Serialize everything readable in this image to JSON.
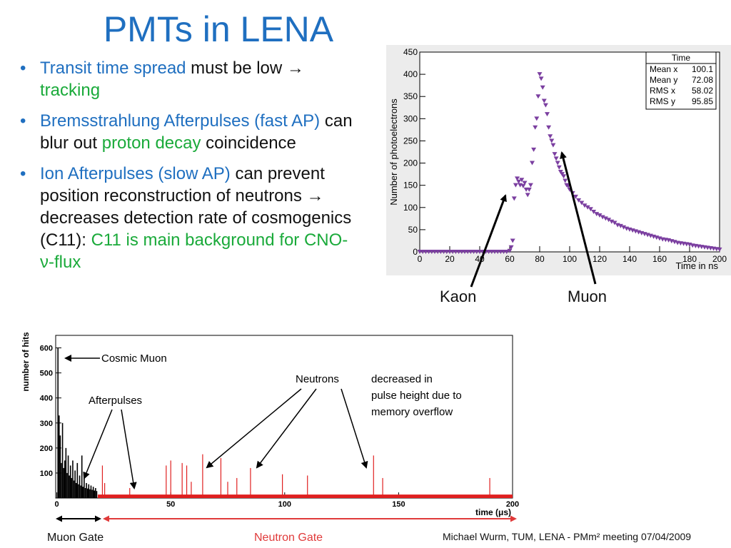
{
  "title": "PMTs in LENA",
  "bullets": [
    {
      "parts": [
        {
          "text": "Transit time spread",
          "color": "blue"
        },
        {
          "text": " must be low → ",
          "color": "black"
        },
        {
          "text": "tracking",
          "color": "green"
        }
      ]
    },
    {
      "parts": [
        {
          "text": "Bremsstrahlung Afterpulses (fast AP)",
          "color": "blue"
        },
        {
          "text": " can blur out ",
          "color": "black"
        },
        {
          "text": "proton decay",
          "color": "green"
        },
        {
          "text": " coincidence",
          "color": "black"
        }
      ]
    },
    {
      "parts": [
        {
          "text": "Ion Afterpulses (slow AP)",
          "color": "blue"
        },
        {
          "text": " can prevent position reconstruction of neutrons → decreases detection rate of cosmogenics (C11): ",
          "color": "black"
        },
        {
          "text": "C11 is main background for CNO-ν-flux",
          "color": "green"
        }
      ]
    }
  ],
  "labels": {
    "kaon": "Kaon",
    "muon": "Muon",
    "muon_gate": "Muon Gate",
    "neutron_gate": "Neutron Gate",
    "footer": "Michael Wurm, TUM, LENA - PMm² meeting 07/04/2009"
  },
  "colors": {
    "title": "#1f6fc0",
    "green": "#1aaa3a",
    "marker": "#7b3fa0",
    "hist_red": "#e02020",
    "gate_red": "#e03a3a"
  },
  "chart_data": [
    {
      "type": "scatter",
      "marker": "down-triangle",
      "xlabel": "Time in ns",
      "ylabel": "Number of photoelectrons",
      "xlim": [
        0,
        200
      ],
      "ylim": [
        0,
        450
      ],
      "xticks": [
        0,
        20,
        40,
        60,
        80,
        100,
        120,
        140,
        160,
        180,
        200
      ],
      "yticks": [
        0,
        50,
        100,
        150,
        200,
        250,
        300,
        350,
        400,
        450
      ],
      "stats": {
        "title": "Time",
        "rows": [
          {
            "label": "Mean x",
            "value": "100.1"
          },
          {
            "label": "Mean y",
            "value": "72.08"
          },
          {
            "label": "RMS x",
            "value": "58.02"
          },
          {
            "label": "RMS y",
            "value": "95.85"
          }
        ]
      },
      "x": [
        0,
        2,
        4,
        6,
        8,
        10,
        12,
        14,
        16,
        18,
        20,
        22,
        24,
        26,
        28,
        30,
        32,
        34,
        36,
        38,
        40,
        42,
        44,
        46,
        48,
        50,
        52,
        54,
        56,
        58,
        60,
        61,
        62,
        63,
        64,
        65,
        66,
        67,
        68,
        69,
        70,
        71,
        72,
        73,
        74,
        75,
        76,
        77,
        78,
        79,
        80,
        81,
        82,
        83,
        84,
        85,
        86,
        87,
        88,
        89,
        90,
        91,
        92,
        93,
        94,
        95,
        96,
        97,
        98,
        99,
        100,
        102,
        104,
        106,
        108,
        110,
        112,
        114,
        116,
        118,
        120,
        122,
        124,
        126,
        128,
        130,
        132,
        134,
        136,
        138,
        140,
        142,
        144,
        146,
        148,
        150,
        152,
        154,
        156,
        158,
        160,
        162,
        164,
        166,
        168,
        170,
        172,
        174,
        176,
        178,
        180,
        182,
        184,
        186,
        188,
        190,
        192,
        194,
        196,
        198,
        200
      ],
      "y": [
        0,
        0,
        0,
        0,
        0,
        0,
        0,
        0,
        0,
        0,
        0,
        0,
        0,
        0,
        0,
        0,
        0,
        0,
        0,
        0,
        0,
        0,
        0,
        0,
        0,
        0,
        0,
        0,
        0,
        0,
        2,
        10,
        25,
        120,
        150,
        165,
        158,
        150,
        162,
        148,
        155,
        140,
        128,
        140,
        150,
        200,
        230,
        280,
        300,
        350,
        400,
        390,
        370,
        340,
        330,
        310,
        280,
        260,
        250,
        240,
        220,
        210,
        200,
        190,
        180,
        175,
        170,
        160,
        150,
        148,
        140,
        132,
        124,
        116,
        110,
        104,
        100,
        96,
        90,
        85,
        82,
        78,
        75,
        72,
        68,
        65,
        60,
        58,
        55,
        52,
        50,
        48,
        46,
        44,
        42,
        40,
        38,
        36,
        34,
        32,
        30,
        28,
        27,
        26,
        24,
        22,
        20,
        19,
        18,
        17,
        16,
        14,
        13,
        12,
        11,
        10,
        9,
        8,
        7,
        6,
        5
      ]
    },
    {
      "type": "bar",
      "xlabel": "time (μs)",
      "ylabel": "number of hits",
      "xlim": [
        -0.5,
        200
      ],
      "ylim": [
        0,
        650
      ],
      "xticks": [
        0,
        50,
        100,
        150,
        200
      ],
      "yticks": [
        100,
        200,
        300,
        400,
        500,
        600
      ],
      "muon_gate_end": 18,
      "annotations": [
        "Cosmic Muon",
        "Afterpulses",
        "Neutrons",
        "decreased in",
        "pulse height due to",
        "memory overflow"
      ],
      "muon_gate_hits": {
        "x": [
          0.5,
          1,
          1.5,
          2,
          2.5,
          3,
          3.5,
          4,
          4.5,
          5,
          5.5,
          6,
          6.5,
          7,
          7.5,
          8,
          8.5,
          9,
          9.5,
          10,
          10.5,
          11,
          11.5,
          12,
          12.5,
          13,
          13.5,
          14,
          14.5,
          15,
          15.5,
          16,
          16.5,
          17,
          17.5
        ],
        "y": [
          600,
          330,
          250,
          140,
          300,
          120,
          150,
          200,
          100,
          170,
          90,
          130,
          80,
          150,
          70,
          110,
          60,
          140,
          55,
          90,
          50,
          170,
          45,
          80,
          40,
          60,
          38,
          55,
          35,
          50,
          33,
          45,
          30,
          40,
          28
        ]
      },
      "neutron_gate_hits": {
        "x": [
          20,
          21,
          32,
          48,
          50,
          55,
          57,
          59,
          64,
          72,
          75,
          79,
          85,
          99,
          110,
          139,
          143,
          190
        ],
        "y": [
          130,
          60,
          40,
          130,
          150,
          140,
          130,
          65,
          175,
          160,
          65,
          80,
          120,
          95,
          90,
          170,
          80,
          80
        ]
      }
    }
  ]
}
